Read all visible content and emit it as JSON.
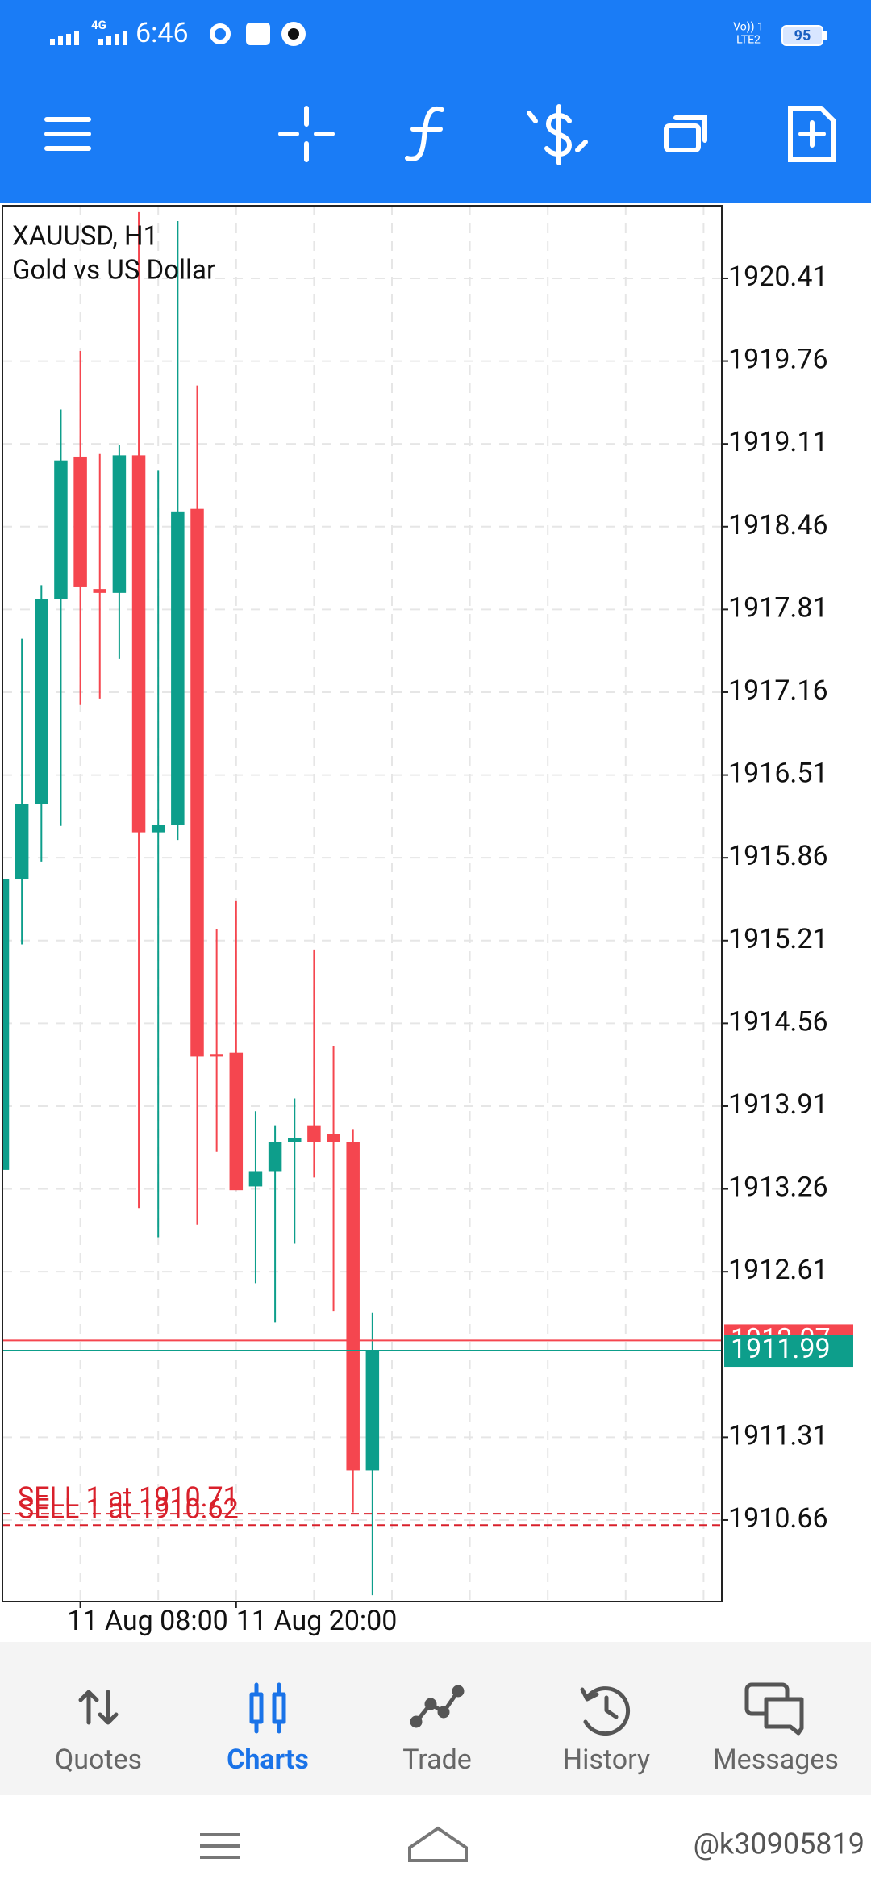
{
  "status_bar": {
    "time": "6:46",
    "network": "4G",
    "volte": "Vo)) 1",
    "carrier": "LTE2",
    "battery": "95"
  },
  "chart": {
    "symbol": "XAUUSD, H1",
    "description": "Gold vs US Dollar",
    "ylim": [
      1910.02,
      1920.98
    ],
    "yticks": [
      1920.41,
      1919.76,
      1919.11,
      1918.46,
      1917.81,
      1917.16,
      1916.51,
      1915.86,
      1915.21,
      1914.56,
      1913.91,
      1913.26,
      1912.61,
      1911.31,
      1910.66
    ],
    "categories": [
      null,
      null,
      null,
      null,
      "11 Aug 08:00",
      null,
      null,
      null,
      null,
      null,
      null,
      null,
      "11 Aug 20:00",
      null,
      null,
      null,
      null,
      null,
      null,
      null
    ],
    "open": [
      1913.41,
      1915.69,
      1916.28,
      1917.89,
      1919.01,
      1917.97,
      1917.94,
      1919.02,
      1916.06,
      1916.12,
      1918.6,
      1914.32,
      1914.33,
      1913.28,
      1913.4,
      1913.63,
      1913.76,
      1913.69,
      1913.63,
      1911.05
    ],
    "high": [
      1915.69,
      1917.58,
      1918.0,
      1919.38,
      1919.84,
      1919.03,
      1919.1,
      1920.93,
      1918.9,
      1920.86,
      1919.57,
      1915.3,
      1915.52,
      1913.87,
      1913.76,
      1913.97,
      1915.14,
      1914.38,
      1913.73,
      1912.29
    ],
    "low": [
      1913.41,
      1915.18,
      1915.83,
      1916.11,
      1917.06,
      1917.11,
      1917.42,
      1913.11,
      1912.88,
      1916.0,
      1912.98,
      1913.55,
      1913.25,
      1912.52,
      1912.21,
      1912.83,
      1913.35,
      1912.3,
      1910.72,
      1910.07
    ],
    "close": [
      1915.69,
      1916.28,
      1917.89,
      1918.98,
      1917.99,
      1917.94,
      1919.02,
      1916.06,
      1916.12,
      1918.58,
      1914.3,
      1914.3,
      1913.25,
      1913.4,
      1913.63,
      1913.66,
      1913.63,
      1913.63,
      1911.05,
      1911.99
    ],
    "up_color": "#0d9e8b",
    "down_color": "#f5464f",
    "ask": {
      "price": 1912.07,
      "color": "#f5464f"
    },
    "bid": {
      "price": 1911.99,
      "color": "#0d9e8b"
    },
    "orders": [
      {
        "label": "SELL 1 at 1910.71",
        "price": 1910.71
      },
      {
        "label": "SELL 1 at 1910.62",
        "price": 1910.62
      }
    ],
    "order_color": "#d9202b",
    "grid": true
  },
  "tabs": [
    {
      "label": "Quotes"
    },
    {
      "label": "Charts"
    },
    {
      "label": "Trade"
    },
    {
      "label": "History"
    },
    {
      "label": "Messages"
    }
  ],
  "active_tab": "Charts",
  "watermark": "@k30905819"
}
